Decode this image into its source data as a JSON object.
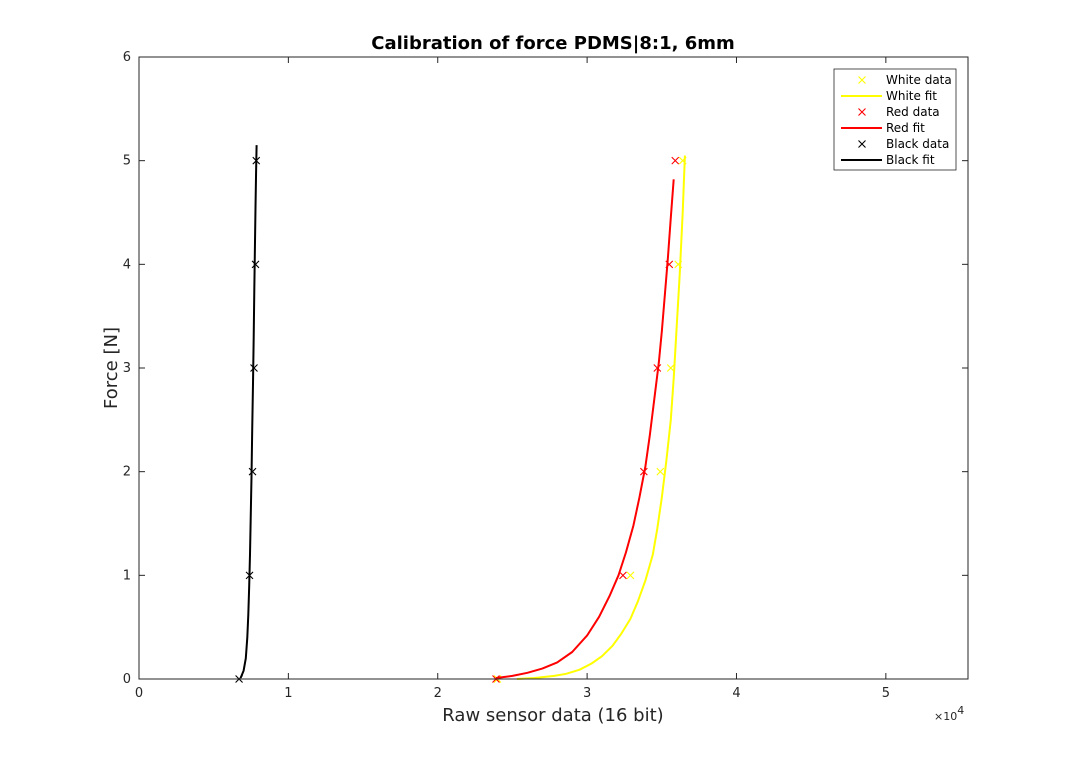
{
  "chart_data": {
    "type": "scatter",
    "title": "Calibration of force PDMS|8:1, 6mm",
    "xlabel": "Raw sensor data (16 bit)",
    "ylabel": "Force [N]",
    "x_exponent_label": "×10",
    "x_exponent_power": "4",
    "xlim": [
      0,
      55500
    ],
    "ylim": [
      0,
      6
    ],
    "xticks": [
      0,
      10000,
      20000,
      30000,
      40000,
      50000
    ],
    "xtick_labels": [
      "0",
      "1",
      "2",
      "3",
      "4",
      "5"
    ],
    "yticks": [
      0,
      1,
      2,
      3,
      4,
      5,
      6
    ],
    "ytick_labels": [
      "0",
      "1",
      "2",
      "3",
      "4",
      "5",
      "6"
    ],
    "grid": false,
    "legend_position": "top-right",
    "legend": [
      "White data",
      "White fit",
      "Red data",
      "Red fit",
      "Black data",
      "Black fit"
    ],
    "series": [
      {
        "name": "White data",
        "kind": "markers",
        "marker": "x",
        "color": "#FFFF00",
        "x": [
          24000,
          32900,
          34900,
          35600,
          36100,
          36400
        ],
        "y": [
          0,
          1,
          2,
          3,
          4,
          5
        ]
      },
      {
        "name": "White fit",
        "kind": "line",
        "color": "#FFFF00",
        "x": [
          25300,
          26500,
          27800,
          28600,
          29500,
          30300,
          31000,
          31700,
          32300,
          32900,
          33400,
          33900,
          34400,
          34700,
          35000,
          35300,
          35600,
          35800,
          36000,
          36200,
          36400,
          36550
        ],
        "y": [
          0,
          0.01,
          0.03,
          0.05,
          0.09,
          0.15,
          0.22,
          0.32,
          0.44,
          0.58,
          0.75,
          0.95,
          1.2,
          1.45,
          1.75,
          2.1,
          2.5,
          2.9,
          3.4,
          3.9,
          4.5,
          5.05
        ]
      },
      {
        "name": "Red data",
        "kind": "markers",
        "marker": "x",
        "color": "#FF0000",
        "x": [
          23900,
          32400,
          33800,
          34700,
          35500,
          35900
        ],
        "y": [
          0,
          1,
          2,
          3,
          4,
          5
        ]
      },
      {
        "name": "Red fit",
        "kind": "line",
        "color": "#FF0000",
        "x": [
          23900,
          25000,
          26000,
          27000,
          28000,
          29000,
          30000,
          30800,
          31500,
          32100,
          32600,
          33100,
          33500,
          33900,
          34200,
          34500,
          34800,
          35000,
          35200,
          35400,
          35600,
          35800
        ],
        "y": [
          0.01,
          0.03,
          0.06,
          0.1,
          0.16,
          0.26,
          0.42,
          0.6,
          0.8,
          1.0,
          1.22,
          1.48,
          1.75,
          2.05,
          2.35,
          2.7,
          3.05,
          3.35,
          3.7,
          4.05,
          4.45,
          4.82
        ]
      },
      {
        "name": "Black data",
        "kind": "markers",
        "marker": "x",
        "color": "#000000",
        "x": [
          6700,
          7400,
          7600,
          7700,
          7800,
          7850
        ],
        "y": [
          0,
          1,
          2,
          3,
          4,
          5
        ]
      },
      {
        "name": "Black fit",
        "kind": "line",
        "color": "#000000",
        "x": [
          6800,
          7000,
          7150,
          7250,
          7320,
          7380,
          7430,
          7480,
          7530,
          7580,
          7630,
          7680,
          7720,
          7760,
          7800,
          7840,
          7870
        ],
        "y": [
          0.01,
          0.08,
          0.2,
          0.4,
          0.62,
          0.9,
          1.2,
          1.55,
          1.95,
          2.4,
          2.85,
          3.3,
          3.75,
          4.15,
          4.55,
          4.9,
          5.15
        ]
      }
    ]
  }
}
